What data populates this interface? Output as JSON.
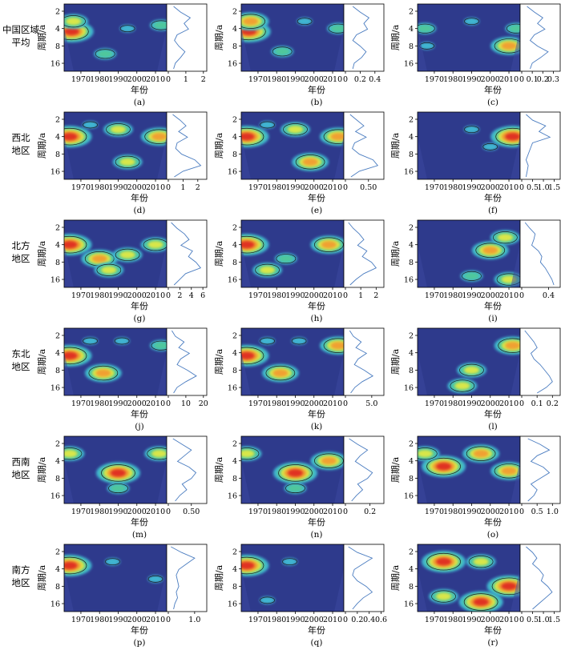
{
  "chart_data": {
    "type": "heatmap",
    "rows": [
      {
        "label": [
          "中国区域",
          "平均"
        ],
        "panels": [
          {
            "letter": "(a)",
            "spectrum_ticks": [
              "0",
              "1",
              "2"
            ],
            "spectrum_max": 2.1,
            "blobs": [
              [
                1965,
                4.5,
                "r"
              ],
              [
                1966,
                3,
                "y"
              ],
              [
                1983,
                11,
                "g"
              ],
              [
                1995,
                4,
                "c"
              ],
              [
                2013,
                3.5,
                "g"
              ]
            ],
            "spectrum": [
              0.3,
              0.7,
              1.25,
              0.9,
              1.15,
              0.5,
              0.35,
              0.6,
              0.95,
              0.7,
              0.4,
              0.3
            ]
          },
          {
            "letter": "(b)",
            "spectrum_ticks": [
              "0",
              "0.2",
              "0.4"
            ],
            "spectrum_max": 0.5,
            "blobs": [
              [
                1965,
                4.5,
                "r"
              ],
              [
                1966,
                3,
                "o"
              ],
              [
                1983,
                10,
                "g"
              ],
              [
                1995,
                3,
                "c"
              ],
              [
                2013,
                4,
                "g"
              ]
            ],
            "spectrum": [
              0.1,
              0.2,
              0.32,
              0.25,
              0.3,
              0.15,
              0.1,
              0.2,
              0.28,
              0.22,
              0.12,
              0.1
            ]
          },
          {
            "letter": "(c)",
            "spectrum_ticks": [
              "0",
              "0.1",
              "0.2",
              "0.3"
            ],
            "spectrum_max": 0.35,
            "blobs": [
              [
                1965,
                4,
                "g"
              ],
              [
                1966,
                8,
                "c"
              ],
              [
                1990,
                3,
                "c"
              ],
              [
                2010,
                8,
                "o"
              ],
              [
                2014,
                4,
                "g"
              ]
            ],
            "spectrum": [
              0.05,
              0.12,
              0.2,
              0.15,
              0.22,
              0.12,
              0.08,
              0.15,
              0.25,
              0.18,
              0.1,
              0.08
            ]
          }
        ]
      },
      {
        "label": [
          "西北",
          "地区"
        ],
        "panels": [
          {
            "letter": "(d)",
            "spectrum_ticks": [
              "0",
              "1",
              "2"
            ],
            "spectrum_max": 2.5,
            "blobs": [
              [
                1964,
                4,
                "r"
              ],
              [
                1975,
                2.5,
                "c"
              ],
              [
                1990,
                3,
                "y"
              ],
              [
                1995,
                11,
                "y"
              ],
              [
                2012,
                4,
                "o"
              ]
            ],
            "spectrum": [
              0.3,
              0.8,
              1.2,
              0.7,
              1.3,
              0.6,
              0.5,
              0.9,
              1.8,
              2.2,
              1.0,
              0.4
            ]
          },
          {
            "letter": "(e)",
            "spectrum_ticks": [
              "0",
              "0.50"
            ],
            "spectrum_max": 0.8,
            "blobs": [
              [
                1964,
                4,
                "r"
              ],
              [
                1975,
                2.5,
                "c"
              ],
              [
                1990,
                3,
                "y"
              ],
              [
                1998,
                11,
                "o"
              ],
              [
                2013,
                4,
                "o"
              ]
            ],
            "spectrum": [
              0.1,
              0.25,
              0.4,
              0.22,
              0.45,
              0.2,
              0.15,
              0.3,
              0.6,
              0.7,
              0.3,
              0.12
            ]
          },
          {
            "letter": "(f)",
            "spectrum_ticks": [
              "0",
              "0.5",
              "1.0",
              "1.5"
            ],
            "spectrum_max": 1.7,
            "blobs": [
              [
                1990,
                3,
                "c"
              ],
              [
                2012,
                4,
                "r"
              ],
              [
                2000,
                6,
                "c"
              ]
            ],
            "spectrum": [
              0.2,
              0.5,
              1.1,
              0.8,
              1.3,
              0.5,
              0.4,
              0.3,
              0.2,
              0.3,
              0.25,
              0.2
            ]
          }
        ]
      },
      {
        "label": [
          "北方",
          "地区"
        ],
        "panels": [
          {
            "letter": "(g)",
            "spectrum_ticks": [
              "0",
              "2",
              "4",
              "6"
            ],
            "spectrum_max": 6.4,
            "blobs": [
              [
                1964,
                4,
                "r"
              ],
              [
                1980,
                7,
                "o"
              ],
              [
                1995,
                6,
                "y"
              ],
              [
                2010,
                4,
                "y"
              ],
              [
                1985,
                11,
                "y"
              ]
            ],
            "spectrum": [
              0.5,
              1.5,
              2.8,
              3.6,
              2.2,
              4.2,
              3.5,
              4.8,
              5.6,
              3.0,
              2.0,
              1.0
            ]
          },
          {
            "letter": "(h)",
            "spectrum_ticks": [
              "0",
              "1",
              "2"
            ],
            "spectrum_max": 2.4,
            "blobs": [
              [
                1964,
                4,
                "r"
              ],
              [
                1985,
                7,
                "g"
              ],
              [
                2008,
                4,
                "o"
              ],
              [
                1975,
                11,
                "y"
              ]
            ],
            "spectrum": [
              0.2,
              0.5,
              0.9,
              1.2,
              0.8,
              1.4,
              1.1,
              1.7,
              2.0,
              1.2,
              0.7,
              0.3
            ]
          },
          {
            "letter": "(i)",
            "spectrum_ticks": [
              "0",
              "0.4"
            ],
            "spectrum_max": 0.55,
            "blobs": [
              [
                2000,
                5,
                "o"
              ],
              [
                2008,
                3,
                "y"
              ],
              [
                1990,
                14,
                "g"
              ],
              [
                2010,
                16,
                "y"
              ]
            ],
            "spectrum": [
              0.05,
              0.12,
              0.2,
              0.18,
              0.15,
              0.25,
              0.3,
              0.28,
              0.35,
              0.4,
              0.45,
              0.48
            ]
          }
        ]
      },
      {
        "label": [
          "东北",
          "地区"
        ],
        "panels": [
          {
            "letter": "(j)",
            "spectrum_ticks": [
              "0",
              "10",
              "20"
            ],
            "spectrum_max": 21,
            "blobs": [
              [
                1964,
                4.5,
                "r"
              ],
              [
                1982,
                9,
                "o"
              ],
              [
                1975,
                2.5,
                "c"
              ],
              [
                1992,
                2.5,
                "c"
              ],
              [
                2013,
                3,
                "g"
              ]
            ],
            "spectrum": [
              2,
              4,
              9,
              6,
              12,
              7,
              5,
              11,
              16,
              10,
              5,
              3
            ]
          },
          {
            "letter": "(k)",
            "spectrum_ticks": [
              "0",
              "5.0"
            ],
            "spectrum_max": 7,
            "blobs": [
              [
                1964,
                4.5,
                "r"
              ],
              [
                1982,
                9,
                "o"
              ],
              [
                1975,
                2.5,
                "c"
              ],
              [
                1992,
                2.5,
                "c"
              ],
              [
                2013,
                3,
                "o"
              ]
            ],
            "spectrum": [
              0.8,
              1.5,
              3,
              2,
              4,
              2.4,
              1.7,
              3.6,
              5.2,
              3.2,
              1.8,
              1
            ]
          },
          {
            "letter": "(l)",
            "spectrum_ticks": [
              "0",
              "0.1",
              "0.2"
            ],
            "spectrum_max": 0.24,
            "blobs": [
              [
                1990,
                8,
                "y"
              ],
              [
                2012,
                3,
                "o"
              ],
              [
                1985,
                15,
                "y"
              ]
            ],
            "spectrum": [
              0.02,
              0.05,
              0.08,
              0.1,
              0.06,
              0.08,
              0.12,
              0.15,
              0.18,
              0.2,
              0.16,
              0.1
            ]
          }
        ]
      },
      {
        "label": [
          "西南",
          "地区"
        ],
        "panels": [
          {
            "letter": "(m)",
            "spectrum_ticks": [
              "0",
              "0.50"
            ],
            "spectrum_max": 0.8,
            "blobs": [
              [
                1990,
                6.5,
                "r"
              ],
              [
                1964,
                3,
                "y"
              ],
              [
                2012,
                3,
                "y"
              ],
              [
                1990,
                12,
                "g"
              ]
            ],
            "spectrum": [
              0.1,
              0.3,
              0.5,
              0.35,
              0.2,
              0.45,
              0.6,
              0.5,
              0.3,
              0.4,
              0.25,
              0.15
            ]
          },
          {
            "letter": "(n)",
            "spectrum_ticks": [
              "0",
              "0.2"
            ],
            "spectrum_max": 0.3,
            "blobs": [
              [
                1990,
                6.5,
                "r"
              ],
              [
                1964,
                3,
                "y"
              ],
              [
                2008,
                4,
                "o"
              ],
              [
                1990,
                12,
                "g"
              ]
            ],
            "spectrum": [
              0.03,
              0.1,
              0.18,
              0.12,
              0.08,
              0.15,
              0.22,
              0.18,
              0.1,
              0.14,
              0.09,
              0.05
            ]
          },
          {
            "letter": "(o)",
            "spectrum_ticks": [
              "0",
              "0.5",
              "1.0"
            ],
            "spectrum_max": 1.2,
            "blobs": [
              [
                1975,
                5,
                "r"
              ],
              [
                1995,
                3,
                "o"
              ],
              [
                2010,
                6,
                "o"
              ],
              [
                1965,
                3,
                "y"
              ]
            ],
            "spectrum": [
              0.2,
              0.6,
              0.9,
              0.5,
              0.3,
              0.7,
              0.9,
              0.6,
              0.3,
              0.5,
              0.4,
              0.2
            ]
          }
        ]
      },
      {
        "label": [
          "南方",
          "地区"
        ],
        "panels": [
          {
            "letter": "(p)",
            "spectrum_ticks": [
              "0",
              "1.0"
            ],
            "spectrum_max": 1.4,
            "blobs": [
              [
                1964,
                3.5,
                "r"
              ],
              [
                1987,
                3,
                "c"
              ],
              [
                2010,
                6,
                "c"
              ]
            ],
            "spectrum": [
              0.1,
              0.5,
              1.0,
              0.7,
              0.4,
              0.3,
              0.35,
              0.4,
              0.3,
              0.35,
              0.25,
              0.2
            ]
          },
          {
            "letter": "(q)",
            "spectrum_ticks": [
              "0",
              "0.2",
              "0.4",
              "0.6"
            ],
            "spectrum_max": 0.62,
            "blobs": [
              [
                1964,
                3.5,
                "r"
              ],
              [
                1987,
                3,
                "c"
              ],
              [
                1975,
                14,
                "c"
              ]
            ],
            "spectrum": [
              0.05,
              0.2,
              0.45,
              0.3,
              0.15,
              0.12,
              0.2,
              0.35,
              0.45,
              0.3,
              0.2,
              0.12
            ]
          },
          {
            "letter": "(r)",
            "spectrum_ticks": [
              "0",
              "0.5",
              "1.0",
              "1.5"
            ],
            "spectrum_max": 1.7,
            "blobs": [
              [
                1975,
                3,
                "r"
              ],
              [
                1995,
                3,
                "y"
              ],
              [
                2010,
                8,
                "r"
              ],
              [
                1995,
                15,
                "r"
              ],
              [
                1975,
                12,
                "y"
              ]
            ],
            "spectrum": [
              0.2,
              0.5,
              0.7,
              0.5,
              0.8,
              1.0,
              0.9,
              1.2,
              1.4,
              1.1,
              0.8,
              0.5
            ]
          }
        ]
      }
    ],
    "x_ticks": [
      "1970",
      "1980",
      "1990",
      "2000",
      "2010"
    ],
    "x_tick_values": [
      1970,
      1980,
      1990,
      2000,
      2010
    ],
    "x_range": [
      1961,
      2016
    ],
    "y_ticks": [
      "2",
      "4",
      "8",
      "16"
    ],
    "y_tick_values": [
      2,
      4,
      8,
      16
    ],
    "y_range": [
      1.5,
      22
    ],
    "y_scale": "log2, inverted",
    "x_label": "年份",
    "y_label": "周期/a",
    "colors": {
      "background": "#2e3a8c",
      "c": "#3fb5d0",
      "g": "#4fc79c",
      "y": "#d9e64a",
      "o": "#f0a030",
      "r": "#e03020",
      "spectrum_line": "#4a7cc0"
    }
  }
}
